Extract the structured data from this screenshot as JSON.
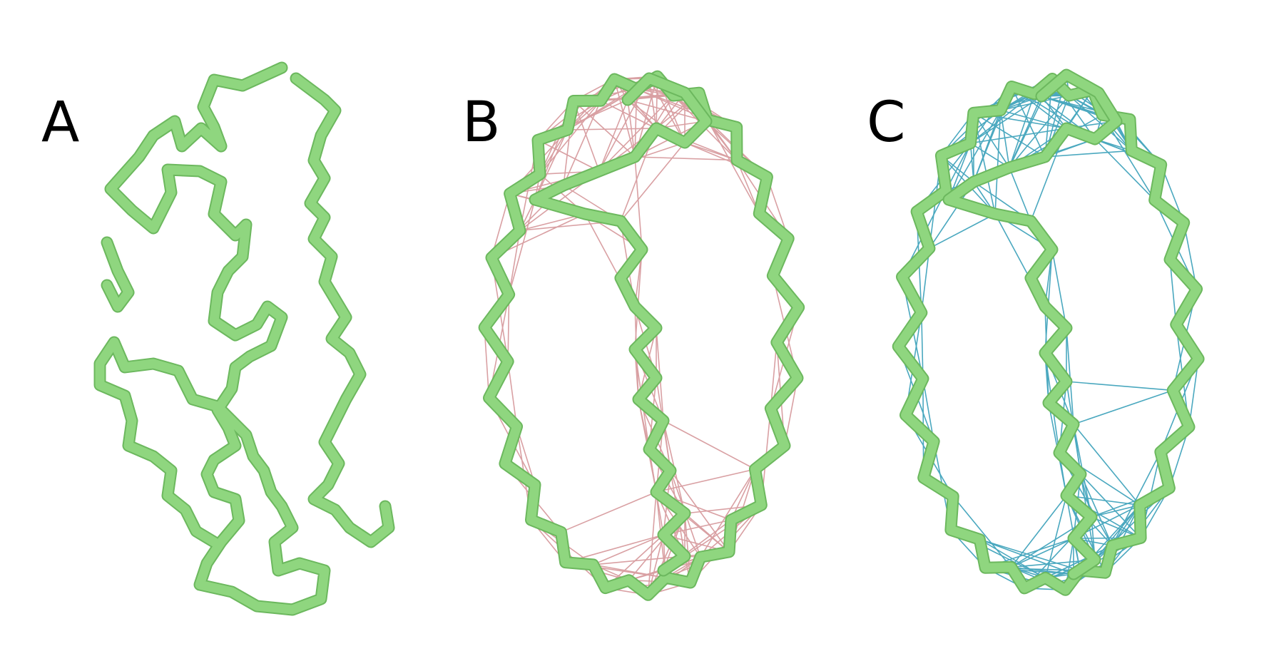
{
  "figure": {
    "panels": [
      {
        "id": "A",
        "label": "A",
        "show_edges": false
      },
      {
        "id": "B",
        "label": "B",
        "show_edges": true,
        "edge_color": "#d9a0a3"
      },
      {
        "id": "C",
        "label": "C",
        "show_edges": true,
        "edge_color": "#4aa8bf"
      }
    ],
    "colors": {
      "background": "#ffffff",
      "backbone": "#8fd67f",
      "backbone_shadow": "#6cb85e"
    }
  }
}
